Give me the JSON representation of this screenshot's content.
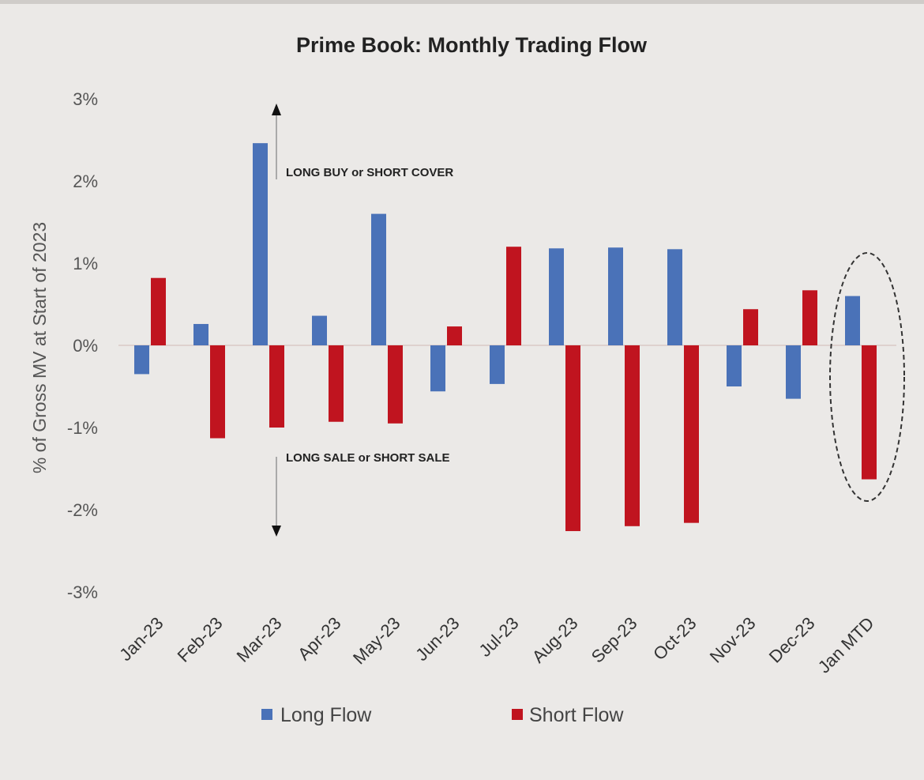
{
  "chart_data": {
    "type": "bar",
    "title": "Prime Book: Monthly Trading Flow",
    "xlabel": "",
    "ylabel": "% of Gross MV at Start of 2023",
    "ylim": [
      -3,
      3
    ],
    "yticks": [
      "3%",
      "2%",
      "1%",
      "0%",
      "-1%",
      "-2%",
      "-3%"
    ],
    "ytick_values": [
      3,
      2,
      1,
      0,
      -1,
      -2,
      -3
    ],
    "categories": [
      "Jan-23",
      "Feb-23",
      "Mar-23",
      "Apr-23",
      "May-23",
      "Jun-23",
      "Jul-23",
      "Aug-23",
      "Sep-23",
      "Oct-23",
      "Nov-23",
      "Dec-23",
      "Jan MTD"
    ],
    "series": [
      {
        "name": "Long Flow",
        "color": "#4a72b8",
        "values": [
          -0.35,
          0.26,
          2.46,
          0.36,
          1.6,
          -0.56,
          -0.47,
          1.18,
          1.19,
          1.17,
          -0.5,
          -0.65,
          0.6
        ]
      },
      {
        "name": "Short Flow",
        "color": "#c0141f",
        "values": [
          0.82,
          -1.13,
          -1.0,
          -0.93,
          -0.95,
          0.23,
          1.2,
          -2.26,
          -2.2,
          -2.16,
          0.44,
          0.67,
          -1.63
        ]
      }
    ],
    "annotations": {
      "up": "LONG BUY or SHORT COVER",
      "down": "LONG SALE or SHORT SALE",
      "highlight": "Jan MTD"
    },
    "grid": false,
    "legend": "bottom"
  }
}
